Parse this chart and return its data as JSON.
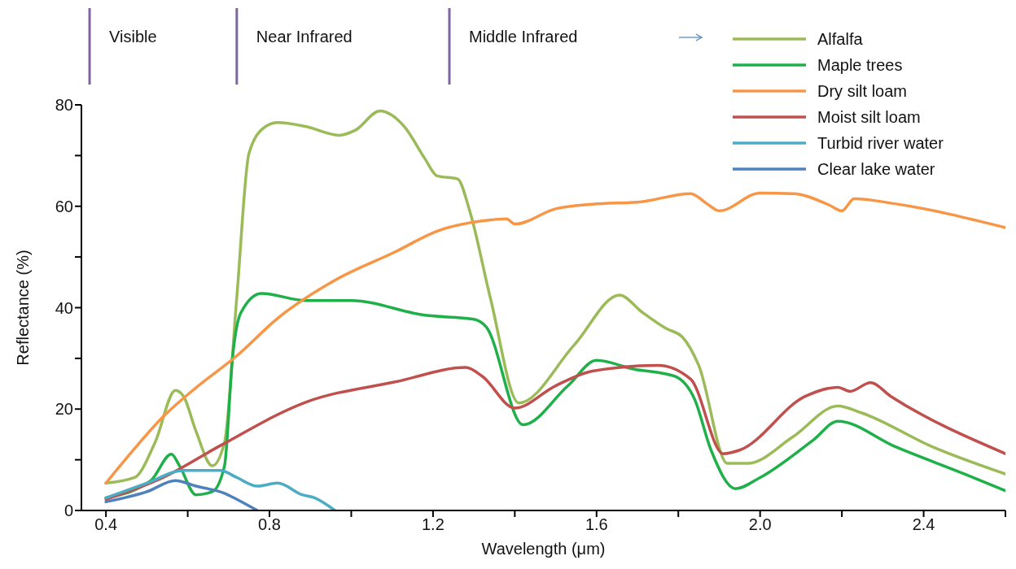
{
  "chart_data": {
    "type": "line",
    "xlabel": "Wavelength (μm)",
    "ylabel": "Reflectance (%)",
    "xlim": [
      0.34,
      2.6
    ],
    "xticks": [
      0.4,
      {
        "value": 0.6,
        "label": null
      },
      0.8,
      {
        "value": 1.0,
        "label": null
      },
      1.2,
      {
        "value": 1.4,
        "label": null
      },
      1.6,
      {
        "value": 1.8,
        "label": null
      },
      {
        "value": 2.0,
        "label": "2.0"
      },
      {
        "value": 2.2,
        "label": null
      },
      2.4,
      {
        "value": 2.6,
        "label": null
      }
    ],
    "ylim": [
      0,
      80
    ],
    "yticks": [
      0,
      {
        "value": 10,
        "label": null
      },
      20,
      {
        "value": 30,
        "label": null
      },
      40,
      {
        "value": 50,
        "label": null
      },
      60,
      {
        "value": 70,
        "label": null
      },
      80
    ],
    "grid": false,
    "legend": "top right",
    "marker": "none",
    "line_style": "solid",
    "ref_lines": [
      {
        "axis": "x",
        "value": 0.36,
        "label": "Visible",
        "color": "#8064a2"
      },
      {
        "axis": "x",
        "value": 0.72,
        "label": "Near Infrared",
        "color": "#8064a2"
      },
      {
        "axis": "x",
        "value": 1.24,
        "label": "Middle Infrared",
        "color": "#8064a2"
      }
    ],
    "series": [
      {
        "name": "Alfalfa",
        "color": "#9bbb59",
        "x": [
          0.4,
          0.47,
          0.52,
          0.57,
          0.59,
          0.62,
          0.66,
          0.69,
          0.72,
          0.75,
          0.79,
          0.82,
          0.89,
          0.97,
          1.01,
          1.07,
          1.13,
          1.18,
          1.21,
          1.26,
          1.29,
          1.34,
          1.41,
          1.545,
          1.656,
          1.71,
          1.77,
          1.81,
          1.85,
          1.92,
          1.97,
          2.08,
          2.19,
          2.25,
          2.42,
          2.6
        ],
        "values": [
          5.4,
          6.5,
          13.4,
          23.7,
          22.5,
          15.7,
          8.8,
          13.4,
          42,
          70.5,
          75.7,
          76.5,
          75.7,
          74,
          75,
          78.8,
          75.7,
          69.4,
          66,
          65.4,
          59,
          42,
          21.2,
          32.6,
          42.5,
          39.2,
          35.9,
          34.2,
          28.6,
          9.3,
          9.3,
          14.5,
          20.6,
          19.2,
          12.6,
          7.2
        ]
      },
      {
        "name": "Maple trees",
        "color": "#1fb04a",
        "x": [
          0.4,
          0.51,
          0.56,
          0.58,
          0.62,
          0.66,
          0.69,
          0.71,
          0.73,
          0.78,
          0.89,
          1.0,
          1.18,
          1.3,
          1.33,
          1.42,
          1.53,
          1.6,
          1.69,
          1.79,
          1.84,
          1.88,
          1.94,
          2.0,
          2.13,
          2.19,
          2.33,
          2.5,
          2.6
        ],
        "values": [
          2.5,
          5.9,
          11.1,
          8.8,
          3.1,
          3.7,
          8.8,
          30.5,
          39,
          42.8,
          41.4,
          41.4,
          38.5,
          37.7,
          36.2,
          16.9,
          24.6,
          29.6,
          27.9,
          26.5,
          21.9,
          11.9,
          4.3,
          6.5,
          13.9,
          17.6,
          12.6,
          7.2,
          3.9
        ]
      },
      {
        "name": "Dry silt loam",
        "color": "#f79646",
        "x": [
          0.4,
          0.47,
          0.54,
          0.62,
          0.72,
          0.82,
          0.96,
          1.11,
          1.21,
          1.32,
          1.38,
          1.4,
          1.5,
          1.59,
          1.71,
          1.83,
          1.87,
          1.9,
          2.0,
          2.08,
          2.17,
          2.2,
          2.23,
          2.33,
          2.6
        ],
        "values": [
          5.4,
          12.2,
          18.5,
          24.2,
          30.5,
          37.9,
          45.4,
          51.1,
          55.1,
          57.1,
          57.5,
          56.5,
          59.5,
          60.4,
          60.9,
          62.5,
          60.5,
          59.1,
          62.6,
          62.5,
          60.2,
          59.1,
          61.5,
          60.5,
          55.8
        ]
      },
      {
        "name": "Moist silt loam",
        "color": "#c0504d",
        "x": [
          0.4,
          0.54,
          0.68,
          0.89,
          1.11,
          1.28,
          1.32,
          1.4,
          1.5,
          1.59,
          1.75,
          1.83,
          1.91,
          1.95,
          2.11,
          2.19,
          2.22,
          2.27,
          2.32,
          2.6
        ],
        "values": [
          2.2,
          6.5,
          12.8,
          21.4,
          25.4,
          28.2,
          26.5,
          20.2,
          24.6,
          27.5,
          28.6,
          25.9,
          11.2,
          11.9,
          22.5,
          24.3,
          23.5,
          25.2,
          22.5,
          11.2
        ]
      },
      {
        "name": "Turbid river water",
        "color": "#4bacc6",
        "x": [
          0.4,
          0.5,
          0.59,
          0.68,
          0.72,
          0.77,
          0.82,
          0.88,
          0.91,
          0.96
        ],
        "values": [
          2.5,
          5.4,
          7.9,
          7.9,
          6.5,
          4.8,
          5.4,
          3.1,
          2.5,
          0
        ]
      },
      {
        "name": "Clear lake water",
        "color": "#4f81bd",
        "x": [
          0.4,
          0.5,
          0.57,
          0.62,
          0.69,
          0.72,
          0.77
        ],
        "values": [
          1.7,
          3.7,
          5.9,
          4.8,
          3.4,
          2.2,
          0
        ]
      }
    ]
  }
}
